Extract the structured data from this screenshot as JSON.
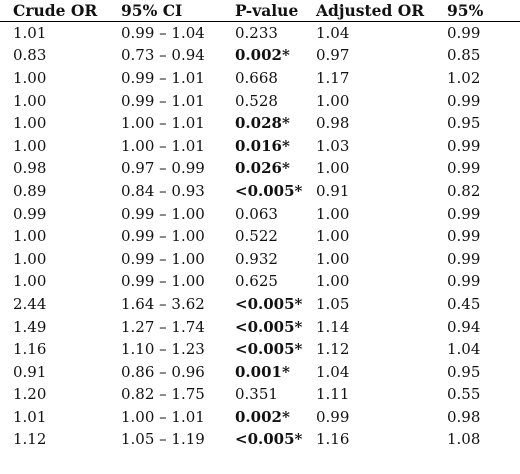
{
  "table": {
    "headers": [
      "Crude OR",
      "95% CI",
      "P-value",
      "Adjusted OR",
      "95%"
    ],
    "rows": [
      {
        "crude_or": "1.01",
        "ci": "0.99 – 1.04",
        "p": "0.233",
        "p_bold": false,
        "adj_or": "1.04",
        "ci2": "0.99"
      },
      {
        "crude_or": "0.83",
        "ci": "0.73 – 0.94",
        "p": "0.002*",
        "p_bold": true,
        "adj_or": "0.97",
        "ci2": "0.85"
      },
      {
        "crude_or": "1.00",
        "ci": "0.99 – 1.01",
        "p": "0.668",
        "p_bold": false,
        "adj_or": "1.17",
        "ci2": "1.02"
      },
      {
        "crude_or": "1.00",
        "ci": "0.99 – 1.01",
        "p": "0.528",
        "p_bold": false,
        "adj_or": "1.00",
        "ci2": "0.99"
      },
      {
        "crude_or": "1.00",
        "ci": "1.00 – 1.01",
        "p": "0.028*",
        "p_bold": true,
        "adj_or": "0.98",
        "ci2": "0.95"
      },
      {
        "crude_or": "1.00",
        "ci": "1.00 – 1.01",
        "p": "0.016*",
        "p_bold": true,
        "adj_or": "1.03",
        "ci2": "0.99"
      },
      {
        "crude_or": "0.98",
        "ci": "0.97 – 0.99",
        "p": "0.026*",
        "p_bold": true,
        "adj_or": "1.00",
        "ci2": "0.99"
      },
      {
        "crude_or": "0.89",
        "ci": "0.84 – 0.93",
        "p": "<0.005*",
        "p_bold": true,
        "adj_or": "0.91",
        "ci2": "0.82"
      },
      {
        "crude_or": "0.99",
        "ci": "0.99 – 1.00",
        "p": "0.063",
        "p_bold": false,
        "adj_or": "1.00",
        "ci2": "0.99"
      },
      {
        "crude_or": "1.00",
        "ci": "0.99 – 1.00",
        "p": "0.522",
        "p_bold": false,
        "adj_or": "1.00",
        "ci2": "0.99"
      },
      {
        "crude_or": "1.00",
        "ci": "0.99 – 1.00",
        "p": "0.932",
        "p_bold": false,
        "adj_or": "1.00",
        "ci2": "0.99"
      },
      {
        "crude_or": "1.00",
        "ci": "0.99 – 1.00",
        "p": "0.625",
        "p_bold": false,
        "adj_or": "1.00",
        "ci2": "0.99"
      },
      {
        "crude_or": "2.44",
        "ci": "1.64 – 3.62",
        "p": "<0.005*",
        "p_bold": true,
        "adj_or": "1.05",
        "ci2": "0.45"
      },
      {
        "crude_or": "1.49",
        "ci": "1.27 – 1.74",
        "p": "<0.005*",
        "p_bold": true,
        "adj_or": "1.14",
        "ci2": "0.94"
      },
      {
        "crude_or": "1.16",
        "ci": "1.10 – 1.23",
        "p": "<0.005*",
        "p_bold": true,
        "adj_or": "1.12",
        "ci2": "1.04"
      },
      {
        "crude_or": "0.91",
        "ci": "0.86 – 0.96",
        "p": "0.001*",
        "p_bold": true,
        "adj_or": "1.04",
        "ci2": "0.95"
      },
      {
        "crude_or": "1.20",
        "ci": "0.82 – 1.75",
        "p": "0.351",
        "p_bold": false,
        "adj_or": "1.11",
        "ci2": "0.55"
      },
      {
        "crude_or": "1.01",
        "ci": "1.00 – 1.01",
        "p": "0.002*",
        "p_bold": true,
        "adj_or": "0.99",
        "ci2": "0.98"
      },
      {
        "crude_or": "1.12",
        "ci": "1.05 – 1.19",
        "p": "<0.005*",
        "p_bold": true,
        "adj_or": "1.16",
        "ci2": "1.08"
      }
    ]
  }
}
